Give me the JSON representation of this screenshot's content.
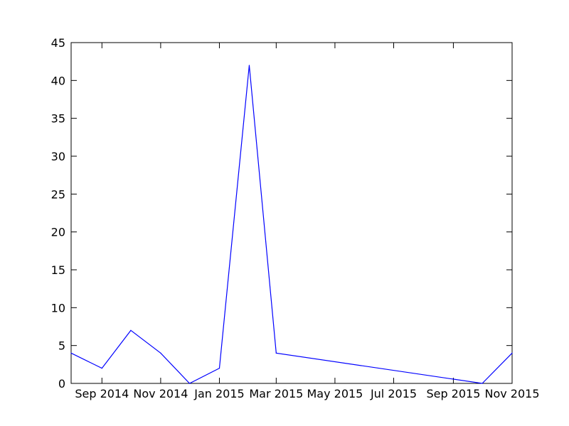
{
  "chart_data": {
    "type": "line",
    "title": "",
    "xlabel": "",
    "ylabel": "",
    "x_type": "date",
    "xlim": [
      "2014-07-31",
      "2015-11-01"
    ],
    "ylim": [
      0,
      45
    ],
    "grid": false,
    "legend": false,
    "x_ticks": [
      {
        "date": "2014-09-01",
        "label": "Sep 2014"
      },
      {
        "date": "2014-11-01",
        "label": "Nov 2014"
      },
      {
        "date": "2015-01-01",
        "label": "Jan 2015"
      },
      {
        "date": "2015-03-01",
        "label": "Mar 2015"
      },
      {
        "date": "2015-05-01",
        "label": "May 2015"
      },
      {
        "date": "2015-07-01",
        "label": "Jul 2015"
      },
      {
        "date": "2015-09-01",
        "label": "Sep 2015"
      },
      {
        "date": "2015-11-01",
        "label": "Nov 2015"
      }
    ],
    "y_ticks": [
      0,
      5,
      10,
      15,
      20,
      25,
      30,
      35,
      40,
      45
    ],
    "series": [
      {
        "color": "#0000ff",
        "points": [
          {
            "x": "2014-07-31",
            "y": 4
          },
          {
            "x": "2014-09-01",
            "y": 2
          },
          {
            "x": "2014-10-01",
            "y": 7
          },
          {
            "x": "2014-11-01",
            "y": 4
          },
          {
            "x": "2014-12-01",
            "y": 0
          },
          {
            "x": "2015-01-01",
            "y": 2
          },
          {
            "x": "2015-02-01",
            "y": 42
          },
          {
            "x": "2015-03-01",
            "y": 4
          },
          {
            "x": "2015-10-01",
            "y": 0
          },
          {
            "x": "2015-11-01",
            "y": 4
          }
        ]
      }
    ]
  }
}
